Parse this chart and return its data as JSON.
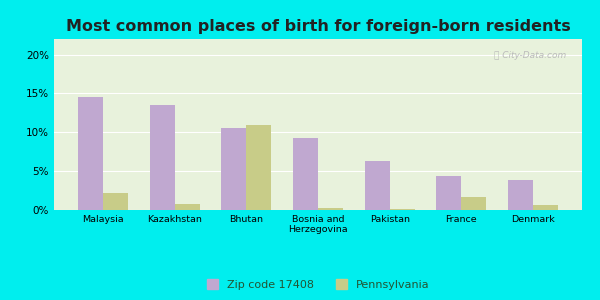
{
  "title": "Most common places of birth for foreign-born residents",
  "categories": [
    "Malaysia",
    "Kazakhstan",
    "Bhutan",
    "Bosnia and\nHerzegovina",
    "Pakistan",
    "France",
    "Denmark"
  ],
  "zip_values": [
    14.5,
    13.5,
    10.5,
    9.3,
    6.3,
    4.4,
    3.9
  ],
  "pa_values": [
    2.2,
    0.8,
    10.9,
    0.3,
    0.1,
    1.7,
    0.6
  ],
  "zip_color": "#c0a8d0",
  "pa_color": "#c8cc88",
  "background_outer": "#00eeee",
  "background_inner": "#e8f2dc",
  "ylim": [
    0,
    22
  ],
  "yticks": [
    0,
    5,
    10,
    15,
    20
  ],
  "ytick_labels": [
    "0%",
    "5%",
    "10%",
    "15%",
    "20%"
  ],
  "legend_zip": "Zip code 17408",
  "legend_pa": "Pennsylvania",
  "title_fontsize": 11.5,
  "bar_width": 0.35
}
